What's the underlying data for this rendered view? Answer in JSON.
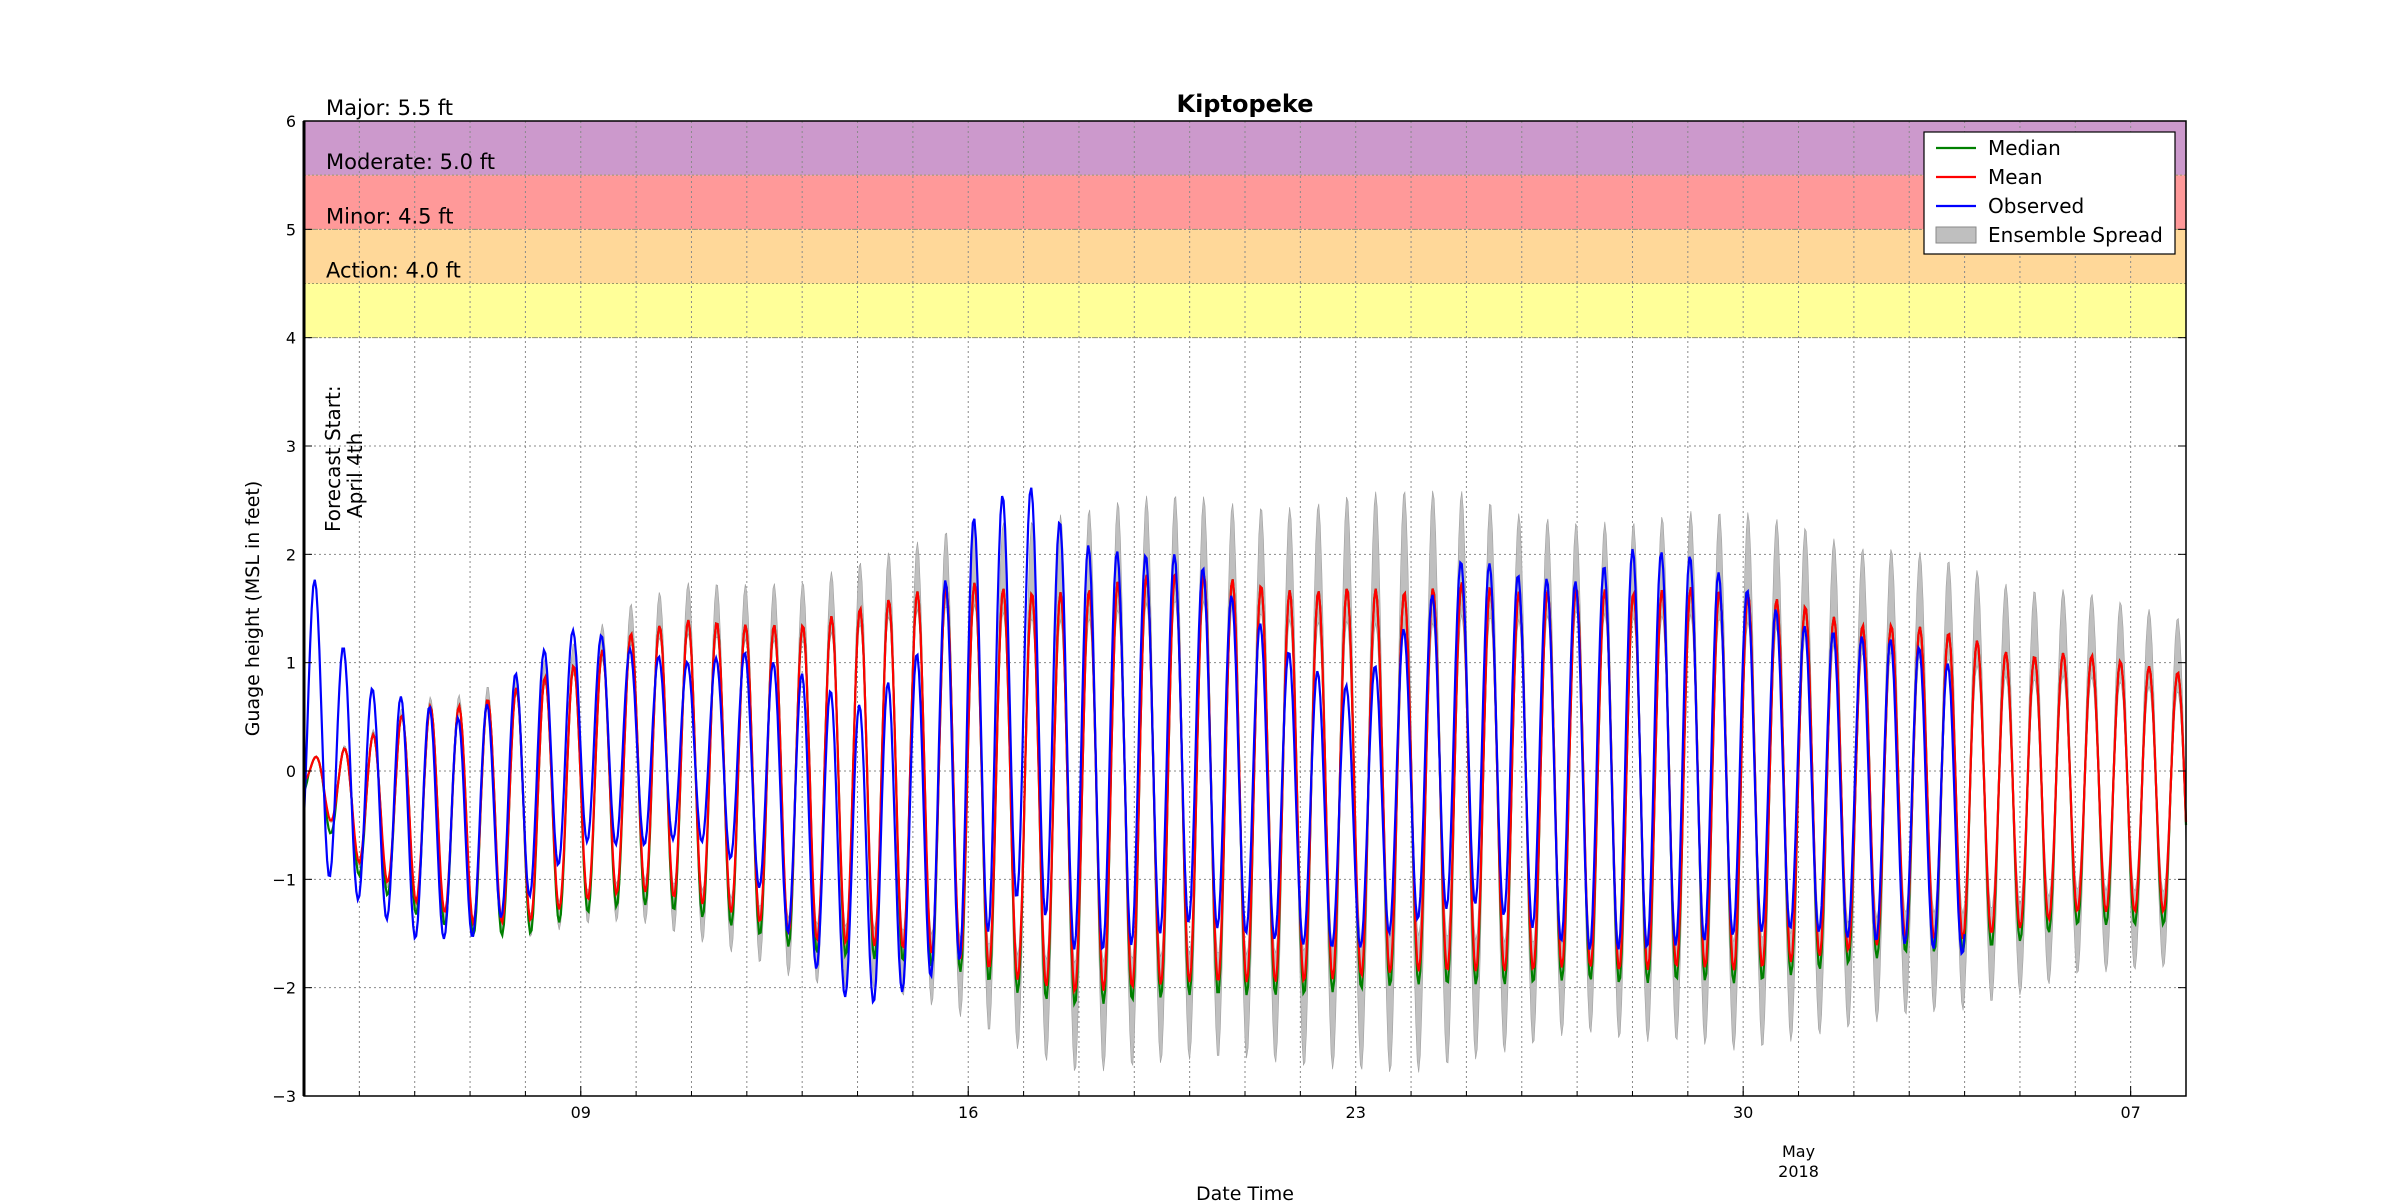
{
  "chart_data": {
    "type": "line",
    "title": "Kiptopeke",
    "xlabel": "Date Time",
    "ylabel": "Guage height (MSL in feet)",
    "ylim": [
      -3,
      6
    ],
    "yticks": [
      -3,
      -2,
      -1,
      0,
      1,
      2,
      3,
      4,
      5,
      6
    ],
    "ytick_labels": [
      "−3",
      "−2",
      "−1",
      "0",
      "1",
      "2",
      "3",
      "4",
      "5",
      "6"
    ],
    "xlim": [
      "2018-04-04",
      "2018-05-08"
    ],
    "xticks": [
      {
        "date": "2018-04-09",
        "label": "09"
      },
      {
        "date": "2018-04-16",
        "label": "16"
      },
      {
        "date": "2018-04-23",
        "label": "23"
      },
      {
        "date": "2018-04-30",
        "label": "30"
      },
      {
        "date": "2018-05-07",
        "label": "07"
      }
    ],
    "month_label": {
      "date": "2018-05-01",
      "line1": "May",
      "line2": "2018"
    },
    "grid": true,
    "legend_position": "top-right",
    "forecast_start": {
      "date": "2018-04-04",
      "label_line1": "Forecast Start:",
      "label_line2": "April 4th"
    },
    "flood_bands": [
      {
        "name": "Action",
        "label": "Action: 4.0 ft",
        "from": 4.0,
        "to": 4.5,
        "color": "#ffff99"
      },
      {
        "name": "Minor",
        "label": "Minor: 4.5 ft",
        "from": 4.5,
        "to": 5.0,
        "color": "#ffd899"
      },
      {
        "name": "Moderate",
        "label": "Moderate: 5.0 ft",
        "from": 5.0,
        "to": 5.5,
        "color": "#ff9999"
      },
      {
        "name": "Major",
        "label": "Major: 5.5 ft",
        "from": 5.5,
        "to": 6.0,
        "color": "#cc99cc"
      }
    ],
    "series": [
      {
        "name": "Median",
        "color": "#008000"
      },
      {
        "name": "Mean",
        "color": "#ff0000"
      },
      {
        "name": "Observed",
        "color": "#0000ff"
      },
      {
        "name": "Ensemble Spread",
        "color": "#bfbfbf"
      }
    ],
    "tide_model": {
      "start": "2018-04-04",
      "end": "2018-05-08",
      "period_hours": 12.42,
      "phase_hours": 2.0,
      "forecast_amplitude_envelope": [
        {
          "date": "2018-04-04",
          "amp": 0.1,
          "mean": 0.0
        },
        {
          "date": "2018-04-05",
          "amp": 0.55,
          "mean": -0.3
        },
        {
          "date": "2018-04-06",
          "amp": 0.9,
          "mean": -0.3
        },
        {
          "date": "2018-04-07",
          "amp": 1.0,
          "mean": -0.4
        },
        {
          "date": "2018-04-08",
          "amp": 1.1,
          "mean": -0.3
        },
        {
          "date": "2018-04-09",
          "amp": 1.1,
          "mean": -0.1
        },
        {
          "date": "2018-04-10",
          "amp": 1.2,
          "mean": 0.1
        },
        {
          "date": "2018-04-11",
          "amp": 1.3,
          "mean": 0.1
        },
        {
          "date": "2018-04-12",
          "amp": 1.35,
          "mean": 0.0
        },
        {
          "date": "2018-04-13",
          "amp": 1.45,
          "mean": -0.1
        },
        {
          "date": "2018-04-14",
          "amp": 1.55,
          "mean": -0.05
        },
        {
          "date": "2018-04-15",
          "amp": 1.65,
          "mean": 0.0
        },
        {
          "date": "2018-04-16",
          "amp": 1.75,
          "mean": 0.0
        },
        {
          "date": "2018-04-17",
          "amp": 1.8,
          "mean": -0.15
        },
        {
          "date": "2018-04-18",
          "amp": 1.85,
          "mean": -0.2
        },
        {
          "date": "2018-04-19",
          "amp": 1.9,
          "mean": -0.1
        },
        {
          "date": "2018-04-20",
          "amp": 1.9,
          "mean": -0.05
        },
        {
          "date": "2018-04-21",
          "amp": 1.85,
          "mean": -0.1
        },
        {
          "date": "2018-04-22",
          "amp": 1.8,
          "mean": -0.15
        },
        {
          "date": "2018-04-23",
          "amp": 1.8,
          "mean": -0.1
        },
        {
          "date": "2018-04-24",
          "amp": 1.75,
          "mean": -0.1
        },
        {
          "date": "2018-04-25",
          "amp": 1.8,
          "mean": -0.05
        },
        {
          "date": "2018-04-26",
          "amp": 1.75,
          "mean": -0.1
        },
        {
          "date": "2018-04-27",
          "amp": 1.75,
          "mean": -0.05
        },
        {
          "date": "2018-04-28",
          "amp": 1.75,
          "mean": -0.1
        },
        {
          "date": "2018-04-29",
          "amp": 1.75,
          "mean": -0.05
        },
        {
          "date": "2018-04-30",
          "amp": 1.75,
          "mean": -0.1
        },
        {
          "date": "2018-05-01",
          "amp": 1.65,
          "mean": -0.1
        },
        {
          "date": "2018-05-02",
          "amp": 1.5,
          "mean": -0.15
        },
        {
          "date": "2018-05-03",
          "amp": 1.45,
          "mean": -0.1
        },
        {
          "date": "2018-05-04",
          "amp": 1.4,
          "mean": -0.15
        },
        {
          "date": "2018-05-05",
          "amp": 1.25,
          "mean": -0.2
        },
        {
          "date": "2018-05-06",
          "amp": 1.2,
          "mean": -0.1
        },
        {
          "date": "2018-05-07",
          "amp": 1.15,
          "mean": -0.15
        },
        {
          "date": "2018-05-08",
          "amp": 1.1,
          "mean": -0.2
        }
      ],
      "spread_envelope": [
        {
          "date": "2018-04-04",
          "extra": 0.0
        },
        {
          "date": "2018-04-08",
          "extra": 0.15
        },
        {
          "date": "2018-04-11",
          "extra": 0.35
        },
        {
          "date": "2018-04-15",
          "extra": 0.45
        },
        {
          "date": "2018-04-18",
          "extra": 0.75
        },
        {
          "date": "2018-04-21",
          "extra": 0.7
        },
        {
          "date": "2018-04-24",
          "extra": 0.95
        },
        {
          "date": "2018-04-27",
          "extra": 0.6
        },
        {
          "date": "2018-04-30",
          "extra": 0.75
        },
        {
          "date": "2018-05-03",
          "extra": 0.7
        },
        {
          "date": "2018-05-08",
          "extra": 0.5
        }
      ],
      "median_low_offset": -0.12,
      "observed_end": "2018-05-04",
      "observed_amplitude_envelope": [
        {
          "date": "2018-04-04",
          "amp": 1.4,
          "mean": 0.6
        },
        {
          "date": "2018-04-05",
          "amp": 1.0,
          "mean": -0.2
        },
        {
          "date": "2018-04-06",
          "amp": 1.1,
          "mean": -0.45
        },
        {
          "date": "2018-04-07",
          "amp": 1.0,
          "mean": -0.55
        },
        {
          "date": "2018-04-08",
          "amp": 1.1,
          "mean": -0.1
        },
        {
          "date": "2018-04-09",
          "amp": 1.0,
          "mean": 0.35
        },
        {
          "date": "2018-04-10",
          "amp": 0.9,
          "mean": 0.2
        },
        {
          "date": "2018-04-11",
          "amp": 0.8,
          "mean": 0.2
        },
        {
          "date": "2018-04-12",
          "amp": 1.0,
          "mean": 0.1
        },
        {
          "date": "2018-04-13",
          "amp": 1.3,
          "mean": -0.4
        },
        {
          "date": "2018-04-14",
          "amp": 1.4,
          "mean": -0.8
        },
        {
          "date": "2018-04-15",
          "amp": 1.5,
          "mean": -0.5
        },
        {
          "date": "2018-04-16",
          "amp": 2.0,
          "mean": 0.3
        },
        {
          "date": "2018-04-17",
          "amp": 1.9,
          "mean": 0.8
        },
        {
          "date": "2018-04-18",
          "amp": 1.9,
          "mean": 0.2
        },
        {
          "date": "2018-04-19",
          "amp": 1.8,
          "mean": 0.2
        },
        {
          "date": "2018-04-20",
          "amp": 1.7,
          "mean": 0.3
        },
        {
          "date": "2018-04-21",
          "amp": 1.5,
          "mean": 0.0
        },
        {
          "date": "2018-04-22",
          "amp": 1.3,
          "mean": -0.3
        },
        {
          "date": "2018-04-23",
          "amp": 1.2,
          "mean": -0.45
        },
        {
          "date": "2018-04-24",
          "amp": 1.4,
          "mean": 0.0
        },
        {
          "date": "2018-04-25",
          "amp": 1.6,
          "mean": 0.4
        },
        {
          "date": "2018-04-26",
          "amp": 1.6,
          "mean": 0.2
        },
        {
          "date": "2018-04-27",
          "amp": 1.7,
          "mean": 0.05
        },
        {
          "date": "2018-04-28",
          "amp": 1.85,
          "mean": 0.2
        },
        {
          "date": "2018-04-29",
          "amp": 1.8,
          "mean": 0.2
        },
        {
          "date": "2018-04-30",
          "amp": 1.6,
          "mean": 0.1
        },
        {
          "date": "2018-05-01",
          "amp": 1.4,
          "mean": -0.05
        },
        {
          "date": "2018-05-02",
          "amp": 1.4,
          "mean": -0.15
        },
        {
          "date": "2018-05-03",
          "amp": 1.4,
          "mean": -0.2
        },
        {
          "date": "2018-05-04",
          "amp": 1.3,
          "mean": -0.4
        }
      ]
    }
  }
}
